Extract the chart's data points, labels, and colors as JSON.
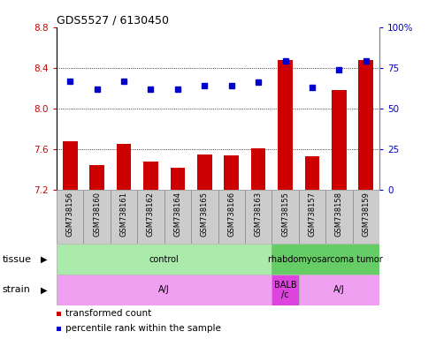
{
  "title": "GDS5527 / 6130450",
  "samples": [
    "GSM738156",
    "GSM738160",
    "GSM738161",
    "GSM738162",
    "GSM738164",
    "GSM738165",
    "GSM738166",
    "GSM738163",
    "GSM738155",
    "GSM738157",
    "GSM738158",
    "GSM738159"
  ],
  "bar_values": [
    7.68,
    7.44,
    7.65,
    7.48,
    7.42,
    7.55,
    7.54,
    7.61,
    8.48,
    7.53,
    8.18,
    8.48
  ],
  "dot_values": [
    67,
    62,
    67,
    62,
    62,
    64,
    64,
    66,
    79,
    63,
    74,
    79
  ],
  "ylim_left": [
    7.2,
    8.8
  ],
  "ylim_right": [
    0,
    100
  ],
  "yticks_left": [
    7.2,
    7.6,
    8.0,
    8.4,
    8.8
  ],
  "yticks_right": [
    0,
    25,
    50,
    75,
    100
  ],
  "ytick_right_labels": [
    "0",
    "25",
    "50",
    "75",
    "100%"
  ],
  "hgrid_values": [
    7.6,
    8.0,
    8.4
  ],
  "bar_color": "#cc0000",
  "dot_color": "#0000cc",
  "tissue_groups": [
    {
      "label": "control",
      "start": 0,
      "end": 8,
      "color": "#aaeaaa"
    },
    {
      "label": "rhabdomyosarcoma tumor",
      "start": 8,
      "end": 12,
      "color": "#66cc66"
    }
  ],
  "strain_groups": [
    {
      "label": "A/J",
      "start": 0,
      "end": 8,
      "color": "#f0a0f0"
    },
    {
      "label": "BALB\n/c",
      "start": 8,
      "end": 9,
      "color": "#dd44dd"
    },
    {
      "label": "A/J",
      "start": 9,
      "end": 12,
      "color": "#f0a0f0"
    }
  ],
  "sample_box_color": "#cccccc",
  "sample_box_edge": "#888888",
  "tissue_label": "tissue",
  "strain_label": "strain",
  "legend_items": [
    {
      "color": "#cc0000",
      "label": "transformed count"
    },
    {
      "color": "#0000cc",
      "label": "percentile rank within the sample"
    }
  ],
  "bar_width": 0.55
}
